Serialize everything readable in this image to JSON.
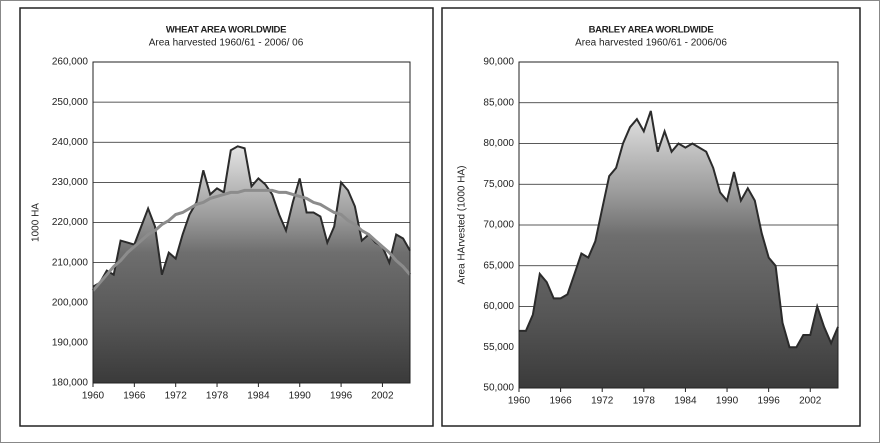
{
  "chart_data": [
    {
      "type": "area",
      "title": "WHEAT AREA WORLDWIDE",
      "subtitle": "Area harvested 1960/61 - 2006/ 06",
      "ylabel": "1000 HA",
      "x": [
        1960,
        1961,
        1962,
        1963,
        1964,
        1965,
        1966,
        1967,
        1968,
        1969,
        1970,
        1971,
        1972,
        1973,
        1974,
        1975,
        1976,
        1977,
        1978,
        1979,
        1980,
        1981,
        1982,
        1983,
        1984,
        1985,
        1986,
        1987,
        1988,
        1989,
        1990,
        1991,
        1992,
        1993,
        1994,
        1995,
        1996,
        1997,
        1998,
        1999,
        2000,
        2001,
        2002,
        2003,
        2004,
        2005,
        2006
      ],
      "series": [
        {
          "color": "#2b2b2b",
          "values": [
            204000,
            205000,
            208000,
            207000,
            215500,
            215000,
            214500,
            219000,
            223500,
            219000,
            207000,
            212500,
            211000,
            217000,
            222000,
            225000,
            233000,
            227000,
            228500,
            227500,
            238000,
            239000,
            238500,
            229000,
            231000,
            229500,
            227000,
            222000,
            218000,
            225000,
            231000,
            222500,
            222500,
            221500,
            215000,
            219000,
            230000,
            228000,
            224000,
            215500,
            217000,
            215000,
            214000,
            210000,
            217000,
            216000,
            213000
          ]
        },
        {
          "type": "line",
          "color": "#8c8c8c",
          "values": [
            203000,
            205000,
            207000,
            209000,
            210500,
            212500,
            214000,
            215500,
            217000,
            218000,
            219500,
            220500,
            222000,
            222500,
            223500,
            224500,
            225000,
            226000,
            226500,
            227000,
            227500,
            227500,
            228000,
            228000,
            228000,
            228000,
            228000,
            227500,
            227500,
            227000,
            226500,
            226000,
            225000,
            224500,
            223500,
            222500,
            222000,
            220500,
            219500,
            218000,
            217000,
            215500,
            214000,
            212500,
            210500,
            209000,
            207000
          ]
        }
      ],
      "xlim": [
        1960,
        2006
      ],
      "xticks": [
        1960,
        1966,
        1972,
        1978,
        1984,
        1990,
        1996,
        2002
      ],
      "ylim": [
        180000,
        260000
      ],
      "yticks": [
        {
          "value": 180000,
          "label": "180,000"
        },
        {
          "value": 190000,
          "label": "190,000"
        },
        {
          "value": 200000,
          "label": "200,000"
        },
        {
          "value": 210000,
          "label": "210,000"
        },
        {
          "value": 220000,
          "label": "220,000"
        },
        {
          "value": 230000,
          "label": "230,000"
        },
        {
          "value": 240000,
          "label": "240,000"
        },
        {
          "value": 250000,
          "label": "250,000"
        },
        {
          "value": 260000,
          "label": "260,000"
        }
      ],
      "grid": true
    },
    {
      "type": "area",
      "title": "BARLEY AREA WORLDWIDE",
      "subtitle": "Area harvested 1960/61 - 2006/06",
      "ylabel": "Area HArvested (1000 HA)",
      "x": [
        1960,
        1961,
        1962,
        1963,
        1964,
        1965,
        1966,
        1967,
        1968,
        1969,
        1970,
        1971,
        1972,
        1973,
        1974,
        1975,
        1976,
        1977,
        1978,
        1979,
        1980,
        1981,
        1982,
        1983,
        1984,
        1985,
        1986,
        1987,
        1988,
        1989,
        1990,
        1991,
        1992,
        1993,
        1994,
        1995,
        1996,
        1997,
        1998,
        1999,
        2000,
        2001,
        2002,
        2003,
        2004,
        2005,
        2006
      ],
      "series": [
        {
          "color": "#2b2b2b",
          "values": [
            57000,
            57000,
            59000,
            64000,
            63000,
            61000,
            61000,
            61500,
            64000,
            66500,
            66000,
            68000,
            72000,
            76000,
            77000,
            80000,
            82000,
            83000,
            81500,
            84000,
            79000,
            81500,
            79000,
            80000,
            79500,
            80000,
            79500,
            79000,
            77000,
            74000,
            73000,
            76500,
            73000,
            74500,
            73000,
            69000,
            66000,
            65000,
            58000,
            55000,
            55000,
            56500,
            56500,
            60000,
            57500,
            55500,
            57500
          ]
        }
      ],
      "xlim": [
        1960,
        2006
      ],
      "xticks": [
        1960,
        1966,
        1972,
        1978,
        1984,
        1990,
        1996,
        2002
      ],
      "ylim": [
        50000,
        90000
      ],
      "yticks": [
        {
          "value": 50000,
          "label": "50,000"
        },
        {
          "value": 55000,
          "label": "55,000"
        },
        {
          "value": 60000,
          "label": "60,000"
        },
        {
          "value": 65000,
          "label": "65,000"
        },
        {
          "value": 70000,
          "label": "70,000"
        },
        {
          "value": 75000,
          "label": "75,000"
        },
        {
          "value": 80000,
          "label": "80,000"
        },
        {
          "value": 85000,
          "label": "85,000"
        },
        {
          "value": 90000,
          "label": "90,000"
        }
      ],
      "grid": true
    }
  ]
}
